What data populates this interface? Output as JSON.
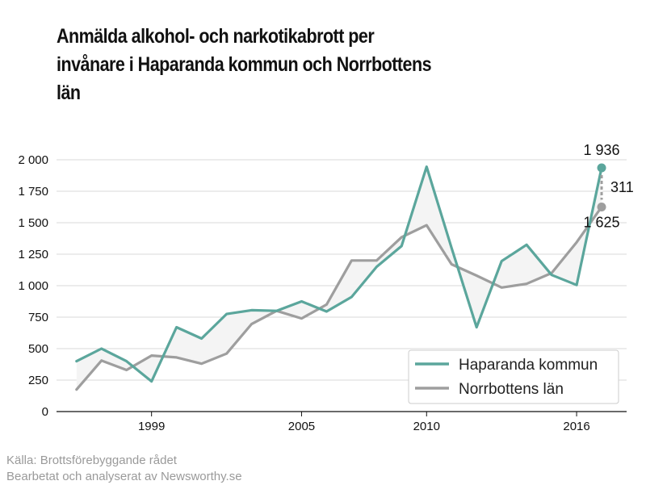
{
  "title_lines": [
    "Anmälda alkohol- och narkotikabrott per",
    "invånare i Haparanda kommun och Norrbottens",
    "län"
  ],
  "source": {
    "line1": "Källa: Brottsförebyggande rådet",
    "line2": "Bearbetat och analyserat av Newsworthy.se"
  },
  "colors": {
    "haparanda": "#5ba69c",
    "norrbotten": "#9e9e9e",
    "fill": "#f4f4f4",
    "grid": "#d9d9d9"
  },
  "chart_data": {
    "type": "line",
    "title": "Anmälda alkohol- och narkotikabrott per invånare i Haparanda kommun och Norrbottens län",
    "xlabel": "",
    "ylabel": "",
    "x": [
      1996,
      1997,
      1998,
      1999,
      2000,
      2001,
      2002,
      2003,
      2004,
      2005,
      2006,
      2007,
      2008,
      2009,
      2010,
      2011,
      2012,
      2013,
      2014,
      2015,
      2016,
      2017
    ],
    "xlim": [
      1995.2,
      2018.0
    ],
    "ylim": [
      0,
      2000
    ],
    "y_ticks": [
      0,
      250,
      500,
      750,
      1000,
      1250,
      1500,
      1750,
      2000
    ],
    "y_tick_labels": [
      "0",
      "250",
      "500",
      "750",
      "1 000",
      "1 250",
      "1 500",
      "1 750",
      "2 000"
    ],
    "x_ticks": [
      1999,
      2005,
      2010,
      2016
    ],
    "x_tick_labels": [
      "1999",
      "2005",
      "2010",
      "2016"
    ],
    "grid": "horizontal",
    "legend_position": "bottom-right",
    "series": [
      {
        "name": "Haparanda kommun",
        "values": [
          400,
          500,
          400,
          240,
          670,
          580,
          775,
          805,
          800,
          875,
          795,
          910,
          1150,
          1315,
          1945,
          1300,
          670,
          1195,
          1325,
          1085,
          1005,
          1936
        ]
      },
      {
        "name": "Norrbottens län",
        "values": [
          175,
          405,
          330,
          445,
          430,
          380,
          460,
          695,
          800,
          740,
          850,
          1200,
          1200,
          1385,
          1480,
          1170,
          1080,
          985,
          1015,
          1100,
          1345,
          1625
        ]
      }
    ],
    "annotations": {
      "haparanda_end_label": "1 936",
      "norrbotten_end_label": "1 625",
      "difference_label": "311"
    }
  }
}
